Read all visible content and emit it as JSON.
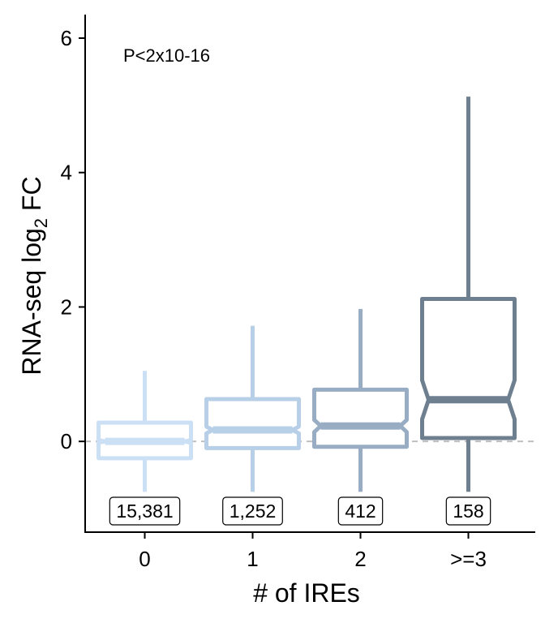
{
  "chart_data": {
    "type": "boxplot",
    "xlabel": "# of IREs",
    "ylabel_main": "RNA-seq log",
    "ylabel_sub": "2",
    "ylabel_tail": " FC",
    "annotation": "P<2x10-16",
    "ylim": [
      -1.35,
      6.35
    ],
    "yticks": [
      0,
      2,
      4,
      6
    ],
    "yticklabels": [
      "0",
      "2",
      "4",
      "6"
    ],
    "reference_line_y": 0,
    "categories": [
      "0",
      "1",
      "2",
      ">=3"
    ],
    "boxes": [
      {
        "category": "0",
        "count_label": "15,381",
        "whisker_low": -0.75,
        "q1": -0.25,
        "median": 0.0,
        "q3": 0.28,
        "whisker_high": 1.05,
        "notch_low": -0.02,
        "notch_high": 0.02,
        "color": "#cce0f5"
      },
      {
        "category": "1",
        "count_label": "1,252",
        "whisker_low": -0.75,
        "q1": -0.1,
        "median": 0.17,
        "q3": 0.63,
        "whisker_high": 1.72,
        "notch_low": 0.12,
        "notch_high": 0.22,
        "color": "#b8cfe8"
      },
      {
        "category": "2",
        "count_label": "412",
        "whisker_low": -0.75,
        "q1": -0.08,
        "median": 0.23,
        "q3": 0.77,
        "whisker_high": 1.97,
        "notch_low": 0.14,
        "notch_high": 0.32,
        "color": "#98adc4"
      },
      {
        "category": ">=3",
        "count_label": "158",
        "whisker_low": -0.75,
        "q1": 0.05,
        "median": 0.62,
        "q3": 2.12,
        "whisker_high": 5.13,
        "notch_low": 0.33,
        "notch_high": 0.91,
        "color": "#6e7f8f"
      }
    ]
  }
}
